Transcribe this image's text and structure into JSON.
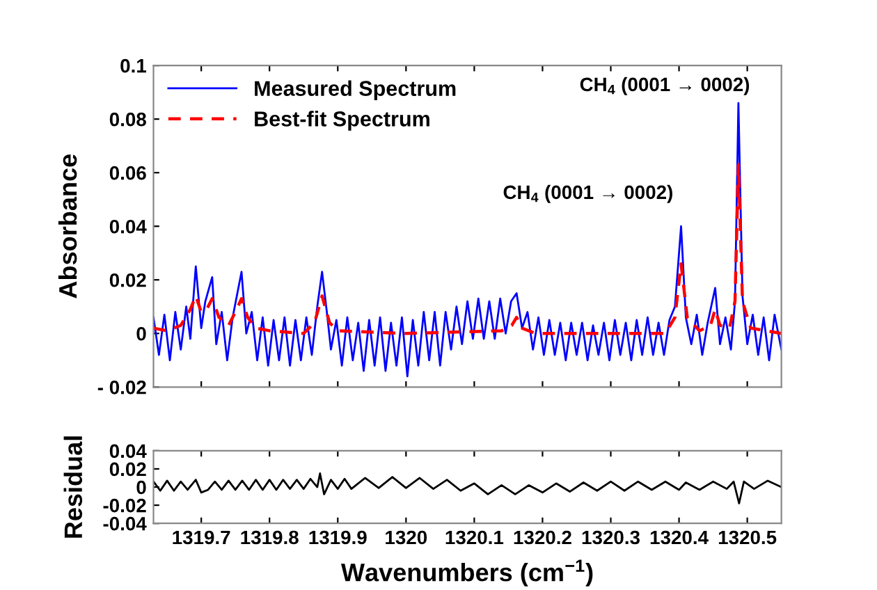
{
  "chart_data": [
    {
      "type": "line",
      "ylabel": "Absorbance",
      "xlim": [
        1319.63,
        1320.55
      ],
      "ylim": [
        -0.02,
        0.1
      ],
      "xticks": [
        1319.7,
        1319.8,
        1319.9,
        1320,
        1320.1,
        1320.2,
        1320.3,
        1320.4,
        1320.5
      ],
      "yticks": [
        {
          "value": -0.02,
          "label": "- 0.02"
        },
        0,
        0.02,
        0.04,
        0.06,
        0.08,
        0.1
      ],
      "tick_labels": "y",
      "legend": "top left",
      "grid": false,
      "annotations": [
        {
          "text": "CH$_{4}$ (0001 → 0002)",
          "x": 1320.403,
          "y": 0.04
        },
        {
          "text": "CH$_{4}$ (0001 → 0002)",
          "x": 1320.487,
          "y": 0.086
        }
      ],
      "series": [
        {
          "name": "Measured Spectrum",
          "color": "#0000ff",
          "line_style": "solid",
          "x": [
            1319.63,
            1319.638,
            1319.646,
            1319.654,
            1319.662,
            1319.67,
            1319.678,
            1319.684,
            1319.692,
            1319.7,
            1319.706,
            1319.716,
            1319.722,
            1319.73,
            1319.738,
            1319.746,
            1319.759,
            1319.766,
            1319.774,
            1319.782,
            1319.79,
            1319.798,
            1319.806,
            1319.814,
            1319.822,
            1319.83,
            1319.838,
            1319.846,
            1319.854,
            1319.862,
            1319.87,
            1319.877,
            1319.884,
            1319.89,
            1319.898,
            1319.906,
            1319.914,
            1319.922,
            1319.93,
            1319.938,
            1319.946,
            1319.954,
            1319.962,
            1319.97,
            1319.978,
            1319.986,
            1319.994,
            1320.002,
            1320.01,
            1320.018,
            1320.026,
            1320.034,
            1320.042,
            1320.05,
            1320.058,
            1320.066,
            1320.074,
            1320.082,
            1320.09,
            1320.098,
            1320.106,
            1320.114,
            1320.122,
            1320.13,
            1320.138,
            1320.146,
            1320.154,
            1320.162,
            1320.17,
            1320.178,
            1320.186,
            1320.194,
            1320.202,
            1320.21,
            1320.218,
            1320.226,
            1320.234,
            1320.242,
            1320.25,
            1320.258,
            1320.266,
            1320.274,
            1320.282,
            1320.29,
            1320.298,
            1320.306,
            1320.314,
            1320.322,
            1320.33,
            1320.338,
            1320.346,
            1320.354,
            1320.362,
            1320.37,
            1320.378,
            1320.386,
            1320.394,
            1320.403,
            1320.41,
            1320.418,
            1320.426,
            1320.434,
            1320.442,
            1320.453,
            1320.46,
            1320.468,
            1320.476,
            1320.482,
            1320.487,
            1320.493,
            1320.5,
            1320.508,
            1320.516,
            1320.524,
            1320.532,
            1320.54,
            1320.55
          ],
          "values": [
            0.006,
            -0.008,
            0.007,
            -0.01,
            0.008,
            -0.006,
            0.01,
            -0.002,
            0.025,
            0.002,
            0.012,
            0.021,
            -0.004,
            0.008,
            -0.01,
            0.006,
            0.023,
            0.0,
            0.008,
            -0.01,
            0.006,
            -0.012,
            0.005,
            -0.01,
            0.006,
            -0.012,
            0.005,
            -0.01,
            0.006,
            -0.008,
            0.01,
            0.023,
            0.008,
            -0.006,
            0.005,
            -0.012,
            0.006,
            -0.01,
            0.004,
            -0.014,
            0.005,
            -0.012,
            0.006,
            -0.014,
            0.004,
            -0.012,
            0.006,
            -0.016,
            0.005,
            -0.012,
            0.008,
            -0.01,
            0.008,
            -0.012,
            0.008,
            -0.006,
            0.01,
            -0.004,
            0.012,
            -0.002,
            0.013,
            -0.002,
            0.012,
            -0.002,
            0.013,
            0.0,
            0.012,
            0.015,
            0.002,
            0.008,
            -0.006,
            0.006,
            -0.008,
            0.005,
            -0.008,
            0.004,
            -0.01,
            0.004,
            -0.008,
            0.004,
            -0.01,
            0.003,
            -0.008,
            0.004,
            -0.01,
            0.005,
            -0.008,
            0.004,
            -0.01,
            0.005,
            -0.008,
            0.006,
            -0.008,
            0.004,
            -0.008,
            0.005,
            0.01,
            0.04,
            0.006,
            -0.004,
            0.007,
            -0.008,
            0.004,
            0.017,
            -0.004,
            0.006,
            -0.006,
            0.012,
            0.086,
            0.014,
            -0.004,
            0.007,
            -0.008,
            0.006,
            -0.01,
            0.007,
            -0.006
          ]
        },
        {
          "name": "Best-fit Spectrum",
          "color": "#ff0000",
          "line_style": "dashed",
          "x": [
            1319.63,
            1319.65,
            1319.67,
            1319.684,
            1319.692,
            1319.7,
            1319.708,
            1319.716,
            1319.726,
            1319.74,
            1319.75,
            1319.759,
            1319.768,
            1319.78,
            1319.8,
            1319.85,
            1319.866,
            1319.877,
            1319.888,
            1319.9,
            1320.0,
            1320.14,
            1320.155,
            1320.162,
            1320.17,
            1320.19,
            1320.38,
            1320.394,
            1320.403,
            1320.412,
            1320.43,
            1320.446,
            1320.453,
            1320.46,
            1320.474,
            1320.482,
            1320.487,
            1320.493,
            1320.505,
            1320.55
          ],
          "values": [
            0.002,
            0.001,
            0.003,
            0.009,
            0.014,
            0.008,
            0.009,
            0.013,
            0.006,
            0.003,
            0.008,
            0.013,
            0.006,
            0.002,
            0.001,
            0.0,
            0.004,
            0.014,
            0.004,
            0.001,
            0.0,
            0.001,
            0.003,
            0.006,
            0.002,
            0.0,
            0.0,
            0.006,
            0.026,
            0.006,
            0.001,
            0.003,
            0.009,
            0.003,
            0.002,
            0.012,
            0.063,
            0.012,
            0.002,
            0.0
          ]
        }
      ]
    },
    {
      "type": "line",
      "ylabel": "Residual",
      "xlabel": "Wavenumbers (cm$^{−1}$)",
      "xlim": [
        1319.63,
        1320.55
      ],
      "ylim": [
        -0.04,
        0.04
      ],
      "xticks": [
        1319.7,
        1319.8,
        1319.9,
        1320,
        1320.1,
        1320.2,
        1320.3,
        1320.4,
        1320.5
      ],
      "yticks": [
        -0.04,
        -0.02,
        0,
        0.02,
        0.04
      ],
      "grid": false,
      "series": [
        {
          "color": "#000000",
          "line_style": "solid",
          "x": [
            1319.63,
            1319.64,
            1319.65,
            1319.66,
            1319.67,
            1319.68,
            1319.692,
            1319.7,
            1319.71,
            1319.72,
            1319.73,
            1319.74,
            1319.75,
            1319.76,
            1319.77,
            1319.78,
            1319.79,
            1319.8,
            1319.81,
            1319.82,
            1319.83,
            1319.84,
            1319.85,
            1319.86,
            1319.87,
            1319.874,
            1319.88,
            1319.89,
            1319.9,
            1319.91,
            1319.92,
            1319.94,
            1319.96,
            1319.98,
            1320.0,
            1320.02,
            1320.04,
            1320.06,
            1320.08,
            1320.1,
            1320.12,
            1320.14,
            1320.16,
            1320.18,
            1320.2,
            1320.22,
            1320.24,
            1320.26,
            1320.28,
            1320.3,
            1320.32,
            1320.34,
            1320.36,
            1320.38,
            1320.4,
            1320.41,
            1320.43,
            1320.45,
            1320.47,
            1320.48,
            1320.488,
            1320.495,
            1320.51,
            1320.53,
            1320.55
          ],
          "values": [
            0.006,
            -0.004,
            0.007,
            -0.004,
            0.006,
            -0.003,
            0.008,
            -0.006,
            -0.003,
            0.006,
            -0.003,
            0.007,
            -0.003,
            0.007,
            -0.003,
            0.008,
            -0.003,
            0.008,
            -0.003,
            0.008,
            -0.002,
            0.008,
            -0.002,
            0.009,
            0.0,
            0.015,
            -0.008,
            0.008,
            -0.002,
            0.009,
            -0.002,
            0.01,
            -0.001,
            0.011,
            -0.001,
            0.01,
            -0.002,
            0.008,
            -0.004,
            0.004,
            -0.008,
            0.002,
            -0.008,
            0.002,
            -0.006,
            0.004,
            -0.005,
            0.005,
            -0.004,
            0.006,
            -0.004,
            0.006,
            -0.003,
            0.006,
            -0.003,
            0.005,
            -0.003,
            0.006,
            -0.002,
            0.006,
            -0.018,
            0.006,
            -0.002,
            0.007,
            0.0
          ]
        }
      ]
    }
  ]
}
